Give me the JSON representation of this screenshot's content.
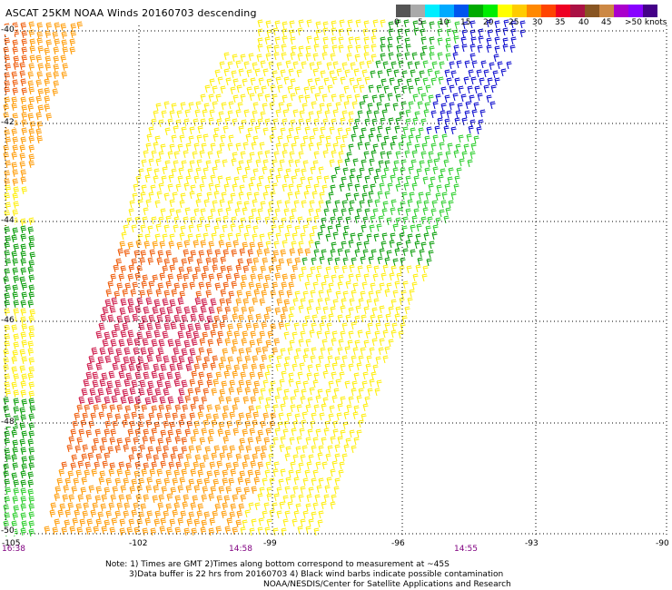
{
  "title": "ASCAT 25KM NOAA Winds 20160703 descending",
  "legend": {
    "labels": [
      "0",
      "5",
      "10",
      "15",
      "20",
      "25",
      "30",
      "35",
      "40",
      "45",
      ">50 knots"
    ],
    "colors": [
      "#555555",
      "#aaaaaa",
      "#00eeff",
      "#00aaff",
      "#0055ee",
      "#00aa00",
      "#00ee00",
      "#ffff00",
      "#ffcc00",
      "#ff8800",
      "#ff4400",
      "#ee0022",
      "#aa1144",
      "#885522",
      "#cc8844",
      "#aa00cc",
      "#8800ff",
      "#440088"
    ]
  },
  "axes": {
    "lon_labels": [
      "-105",
      "-102",
      "-99",
      "-96",
      "-93",
      "-90"
    ],
    "lat_labels": [
      "-40",
      "-42",
      "-44",
      "-46",
      "-48",
      "-50"
    ],
    "time_labels": [
      "16:38",
      "14:58",
      "14:55"
    ]
  },
  "notes": [
    "Note: 1) Times are GMT 2)Times along bottom correspond to measurement at ~45S",
    "3)Data buffer is 22 hrs from 20160703 4) Black wind barbs indicate possible contamination",
    "NOAA/NESDIS/Center for Satellite Applications and Research"
  ],
  "colors": {
    "grid": "#000000",
    "barb_yellow": "#ffee00",
    "barb_orange": "#ff9900",
    "barb_red_orange": "#ee5500",
    "barb_crimson": "#cc1144",
    "barb_green": "#009900",
    "barb_light_green": "#22cc22",
    "barb_blue": "#0000cc"
  }
}
